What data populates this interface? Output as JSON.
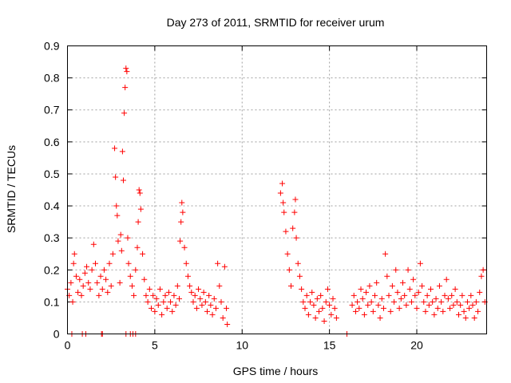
{
  "chart_data": {
    "type": "scatter",
    "title": "Day 273 of 2011, SRMTID for receiver urum",
    "xlabel": "GPS time / hours",
    "ylabel": "SRMTID / TECUs",
    "xlim": [
      0,
      24
    ],
    "ylim": [
      0,
      0.9
    ],
    "xticks": [
      0,
      5,
      10,
      15,
      20
    ],
    "yticks": [
      0,
      0.1,
      0.2,
      0.3,
      0.4,
      0.5,
      0.6,
      0.7,
      0.8,
      0.9
    ],
    "xtick_labels": [
      "0",
      "5",
      "10",
      "15",
      "20"
    ],
    "ytick_labels": [
      "0",
      "0.1",
      "0.2",
      "0.3",
      "0.4",
      "0.5",
      "0.6",
      "0.7",
      "0.8",
      "0.9"
    ],
    "grid": true,
    "marker": "+",
    "color": "#ff0000",
    "series": [
      {
        "points": [
          [
            0.0,
            0.14
          ],
          [
            0.1,
            0.12
          ],
          [
            0.2,
            0.16
          ],
          [
            0.3,
            0.1
          ],
          [
            0.35,
            0.22
          ],
          [
            0.4,
            0.25
          ],
          [
            0.5,
            0.18
          ],
          [
            0.6,
            0.13
          ],
          [
            0.7,
            0.17
          ],
          [
            0.8,
            0.12
          ],
          [
            0.9,
            0.15
          ],
          [
            1.0,
            0.19
          ],
          [
            1.1,
            0.21
          ],
          [
            1.2,
            0.16
          ],
          [
            1.3,
            0.14
          ],
          [
            1.4,
            0.2
          ],
          [
            1.5,
            0.28
          ],
          [
            1.6,
            0.22
          ],
          [
            1.7,
            0.16
          ],
          [
            1.8,
            0.12
          ],
          [
            1.9,
            0.18
          ],
          [
            2.0,
            0.14
          ],
          [
            2.1,
            0.2
          ],
          [
            2.2,
            0.17
          ],
          [
            2.3,
            0.13
          ],
          [
            2.4,
            0.22
          ],
          [
            2.5,
            0.15
          ],
          [
            2.6,
            0.25
          ],
          [
            2.7,
            0.58
          ],
          [
            2.75,
            0.49
          ],
          [
            2.8,
            0.4
          ],
          [
            2.85,
            0.37
          ],
          [
            2.9,
            0.29
          ],
          [
            3.0,
            0.16
          ],
          [
            3.05,
            0.31
          ],
          [
            3.1,
            0.26
          ],
          [
            3.15,
            0.57
          ],
          [
            3.2,
            0.48
          ],
          [
            3.25,
            0.69
          ],
          [
            3.3,
            0.77
          ],
          [
            3.35,
            0.83
          ],
          [
            3.4,
            0.82
          ],
          [
            3.45,
            0.3
          ],
          [
            3.5,
            0.22
          ],
          [
            3.6,
            0.18
          ],
          [
            3.7,
            0.15
          ],
          [
            3.8,
            0.12
          ],
          [
            3.9,
            0.2
          ],
          [
            4.0,
            0.27
          ],
          [
            4.05,
            0.35
          ],
          [
            4.1,
            0.45
          ],
          [
            4.15,
            0.44
          ],
          [
            4.2,
            0.39
          ],
          [
            4.3,
            0.25
          ],
          [
            4.4,
            0.17
          ],
          [
            4.5,
            0.12
          ],
          [
            4.6,
            0.1
          ],
          [
            4.7,
            0.14
          ],
          [
            4.8,
            0.08
          ],
          [
            4.9,
            0.12
          ],
          [
            5.0,
            0.07
          ],
          [
            5.1,
            0.11
          ],
          [
            5.2,
            0.09
          ],
          [
            5.3,
            0.14
          ],
          [
            5.4,
            0.06
          ],
          [
            5.5,
            0.1
          ],
          [
            5.6,
            0.12
          ],
          [
            5.7,
            0.08
          ],
          [
            5.8,
            0.13
          ],
          [
            5.9,
            0.1
          ],
          [
            6.0,
            0.07
          ],
          [
            6.1,
            0.12
          ],
          [
            6.2,
            0.09
          ],
          [
            6.3,
            0.15
          ],
          [
            6.4,
            0.11
          ],
          [
            6.45,
            0.29
          ],
          [
            6.5,
            0.35
          ],
          [
            6.55,
            0.41
          ],
          [
            6.6,
            0.38
          ],
          [
            6.7,
            0.27
          ],
          [
            6.8,
            0.22
          ],
          [
            6.9,
            0.18
          ],
          [
            7.0,
            0.15
          ],
          [
            7.1,
            0.13
          ],
          [
            7.2,
            0.1
          ],
          [
            7.3,
            0.12
          ],
          [
            7.4,
            0.08
          ],
          [
            7.5,
            0.14
          ],
          [
            7.6,
            0.11
          ],
          [
            7.7,
            0.09
          ],
          [
            7.8,
            0.13
          ],
          [
            7.9,
            0.1
          ],
          [
            8.0,
            0.07
          ],
          [
            8.1,
            0.12
          ],
          [
            8.2,
            0.09
          ],
          [
            8.3,
            0.06
          ],
          [
            8.4,
            0.11
          ],
          [
            8.5,
            0.08
          ],
          [
            8.6,
            0.22
          ],
          [
            8.7,
            0.15
          ],
          [
            8.8,
            0.1
          ],
          [
            8.9,
            0.05
          ],
          [
            9.0,
            0.21
          ],
          [
            9.1,
            0.08
          ],
          [
            9.15,
            0.03
          ],
          [
            12.2,
            0.44
          ],
          [
            12.3,
            0.47
          ],
          [
            12.35,
            0.41
          ],
          [
            12.4,
            0.38
          ],
          [
            12.5,
            0.32
          ],
          [
            12.6,
            0.25
          ],
          [
            12.7,
            0.2
          ],
          [
            12.8,
            0.15
          ],
          [
            12.9,
            0.33
          ],
          [
            13.0,
            0.38
          ],
          [
            13.05,
            0.42
          ],
          [
            13.1,
            0.3
          ],
          [
            13.2,
            0.22
          ],
          [
            13.3,
            0.18
          ],
          [
            13.4,
            0.14
          ],
          [
            13.5,
            0.1
          ],
          [
            13.6,
            0.08
          ],
          [
            13.7,
            0.12
          ],
          [
            13.8,
            0.06
          ],
          [
            13.9,
            0.1
          ],
          [
            14.0,
            0.13
          ],
          [
            14.1,
            0.09
          ],
          [
            14.2,
            0.05
          ],
          [
            14.3,
            0.11
          ],
          [
            14.4,
            0.07
          ],
          [
            14.5,
            0.12
          ],
          [
            14.6,
            0.08
          ],
          [
            14.7,
            0.04
          ],
          [
            14.8,
            0.1
          ],
          [
            14.9,
            0.14
          ],
          [
            15.0,
            0.09
          ],
          [
            15.1,
            0.06
          ],
          [
            15.2,
            0.11
          ],
          [
            15.3,
            0.08
          ],
          [
            15.4,
            0.05
          ],
          [
            16.3,
            0.09
          ],
          [
            16.4,
            0.12
          ],
          [
            16.5,
            0.07
          ],
          [
            16.6,
            0.1
          ],
          [
            16.7,
            0.08
          ],
          [
            16.8,
            0.14
          ],
          [
            16.9,
            0.11
          ],
          [
            17.0,
            0.06
          ],
          [
            17.1,
            0.13
          ],
          [
            17.2,
            0.09
          ],
          [
            17.3,
            0.15
          ],
          [
            17.4,
            0.1
          ],
          [
            17.5,
            0.07
          ],
          [
            17.6,
            0.12
          ],
          [
            17.7,
            0.16
          ],
          [
            17.8,
            0.09
          ],
          [
            17.9,
            0.05
          ],
          [
            18.0,
            0.11
          ],
          [
            18.1,
            0.08
          ],
          [
            18.2,
            0.25
          ],
          [
            18.3,
            0.18
          ],
          [
            18.4,
            0.12
          ],
          [
            18.5,
            0.07
          ],
          [
            18.6,
            0.15
          ],
          [
            18.7,
            0.1
          ],
          [
            18.8,
            0.2
          ],
          [
            18.9,
            0.13
          ],
          [
            19.0,
            0.08
          ],
          [
            19.1,
            0.11
          ],
          [
            19.2,
            0.16
          ],
          [
            19.3,
            0.12
          ],
          [
            19.4,
            0.09
          ],
          [
            19.5,
            0.2
          ],
          [
            19.6,
            0.14
          ],
          [
            19.7,
            0.1
          ],
          [
            19.8,
            0.17
          ],
          [
            19.9,
            0.12
          ],
          [
            20.0,
            0.08
          ],
          [
            20.1,
            0.13
          ],
          [
            20.2,
            0.22
          ],
          [
            20.3,
            0.15
          ],
          [
            20.4,
            0.1
          ],
          [
            20.5,
            0.07
          ],
          [
            20.6,
            0.12
          ],
          [
            20.7,
            0.09
          ],
          [
            20.8,
            0.14
          ],
          [
            20.9,
            0.1
          ],
          [
            21.0,
            0.06
          ],
          [
            21.1,
            0.11
          ],
          [
            21.2,
            0.08
          ],
          [
            21.3,
            0.15
          ],
          [
            21.4,
            0.1
          ],
          [
            21.5,
            0.07
          ],
          [
            21.6,
            0.12
          ],
          [
            21.7,
            0.17
          ],
          [
            21.8,
            0.11
          ],
          [
            21.9,
            0.08
          ],
          [
            22.0,
            0.12
          ],
          [
            22.1,
            0.09
          ],
          [
            22.2,
            0.14
          ],
          [
            22.3,
            0.1
          ],
          [
            22.4,
            0.06
          ],
          [
            22.5,
            0.09
          ],
          [
            22.6,
            0.12
          ],
          [
            22.7,
            0.07
          ],
          [
            22.8,
            0.05
          ],
          [
            22.9,
            0.1
          ],
          [
            23.0,
            0.08
          ],
          [
            23.1,
            0.12
          ],
          [
            23.2,
            0.09
          ],
          [
            23.3,
            0.05
          ],
          [
            23.4,
            0.1
          ],
          [
            23.5,
            0.07
          ],
          [
            23.6,
            0.13
          ],
          [
            23.7,
            0.18
          ],
          [
            23.8,
            0.2
          ],
          [
            23.9,
            0.1
          ],
          [
            0.25,
            0.0
          ],
          [
            0.85,
            0.0
          ],
          [
            1.05,
            0.0
          ],
          [
            1.95,
            0.0
          ],
          [
            2.0,
            0.0
          ],
          [
            3.35,
            0.0
          ],
          [
            3.6,
            0.0
          ],
          [
            3.75,
            0.0
          ],
          [
            3.9,
            0.0
          ],
          [
            16.0,
            0.0
          ]
        ]
      }
    ]
  }
}
